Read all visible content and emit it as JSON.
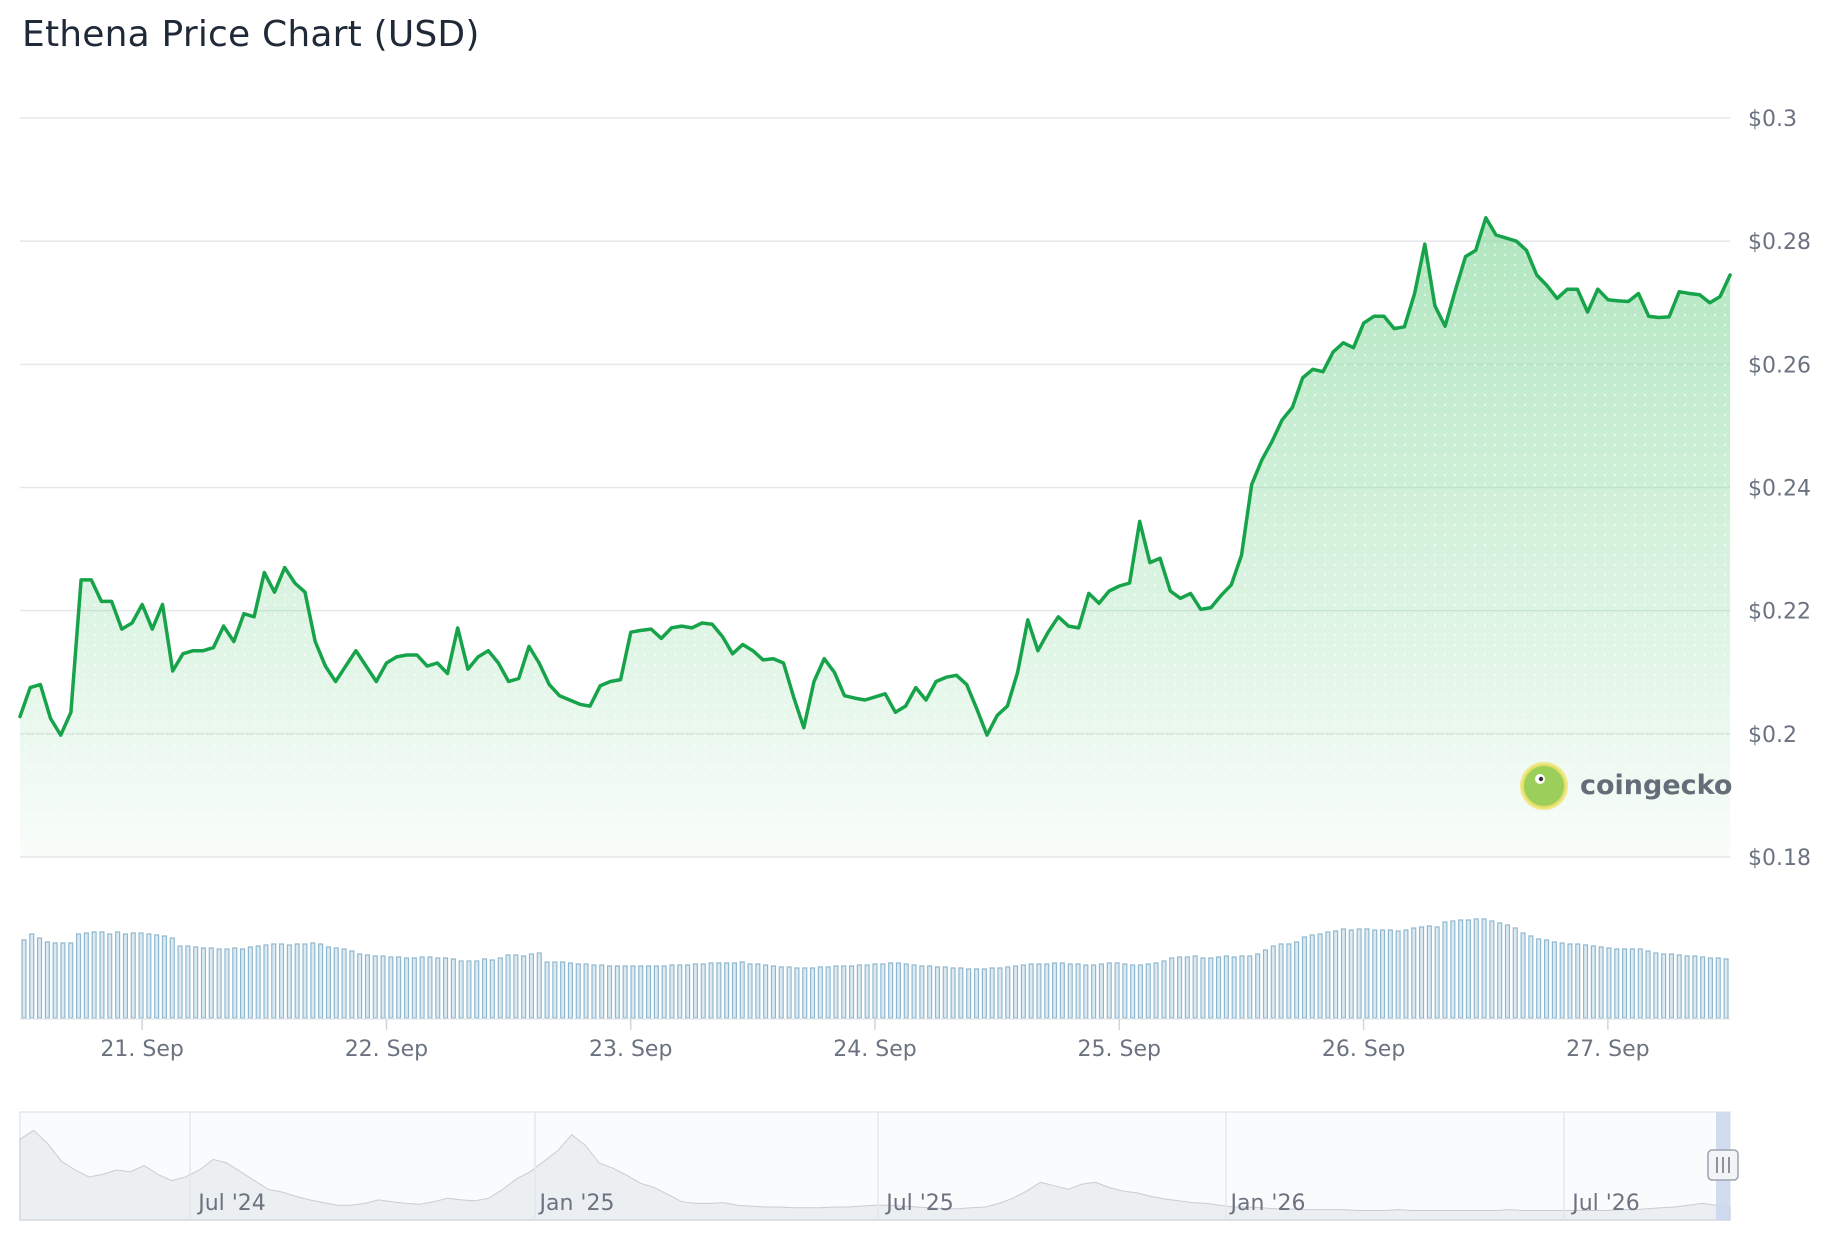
{
  "title": "Ethena Price Chart (USD)",
  "colors": {
    "line": "#16a34a",
    "area_top": "#86d89c",
    "grid": "#e5e7eb",
    "axis_text": "#6b7280",
    "volume_bar": "#8fb8cf",
    "navigator_area": "#e5e7eb",
    "navigator_handle": "#c9d6ee"
  },
  "watermark": {
    "text": "coingecko",
    "icon": "coingecko-gecko-logo"
  },
  "chart_data": [
    {
      "type": "line",
      "title": "Ethena Price Chart (USD)",
      "xlabel": "",
      "ylabel": "",
      "y_axis_side": "right",
      "ylim": [
        0.18,
        0.3
      ],
      "y_ticks": [
        0.18,
        0.2,
        0.22,
        0.24,
        0.26,
        0.28,
        0.3
      ],
      "y_tick_labels": [
        "$0.18",
        "$0.2",
        "$0.22",
        "$0.24",
        "$0.26",
        "$0.28",
        "$0.3"
      ],
      "xlim_days": [
        20.5,
        27.5
      ],
      "x_ticks": [
        21,
        22,
        23,
        24,
        25,
        26,
        27
      ],
      "x_tick_labels": [
        "21. Sep",
        "22. Sep",
        "23. Sep",
        "24. Sep",
        "25. Sep",
        "26. Sep",
        "27. Sep"
      ],
      "grid": true,
      "fill": "gradient-area",
      "series": [
        {
          "x_start_day": 20.5,
          "x_step_days": 0.04167,
          "values": [
            0.2028,
            0.2075,
            0.208,
            0.2025,
            0.1998,
            0.2035,
            0.225,
            0.225,
            0.2215,
            0.2215,
            0.217,
            0.218,
            0.221,
            0.217,
            0.221,
            0.2102,
            0.213,
            0.2135,
            0.2135,
            0.214,
            0.2175,
            0.215,
            0.2195,
            0.219,
            0.2262,
            0.223,
            0.227,
            0.2245,
            0.223,
            0.215,
            0.211,
            0.2085,
            0.211,
            0.2135,
            0.211,
            0.2085,
            0.2115,
            0.2125,
            0.2128,
            0.2128,
            0.211,
            0.2115,
            0.2098,
            0.2172,
            0.2105,
            0.2125,
            0.2135,
            0.2115,
            0.2085,
            0.209,
            0.2142,
            0.2115,
            0.208,
            0.2062,
            0.2055,
            0.2048,
            0.2045,
            0.2078,
            0.2085,
            0.2088,
            0.2165,
            0.2168,
            0.217,
            0.2155,
            0.2172,
            0.2175,
            0.2172,
            0.218,
            0.2178,
            0.2158,
            0.213,
            0.2145,
            0.2135,
            0.212,
            0.2122,
            0.2115,
            0.206,
            0.201,
            0.2085,
            0.2122,
            0.21,
            0.2062,
            0.2058,
            0.2055,
            0.206,
            0.2065,
            0.2035,
            0.2045,
            0.2075,
            0.2055,
            0.2085,
            0.2092,
            0.2095,
            0.208,
            0.204,
            0.1998,
            0.203,
            0.2045,
            0.21,
            0.2185,
            0.2135,
            0.2165,
            0.219,
            0.2175,
            0.2172,
            0.2228,
            0.2212,
            0.2232,
            0.224,
            0.2245,
            0.2345,
            0.2278,
            0.2285,
            0.2232,
            0.222,
            0.2228,
            0.2202,
            0.2205,
            0.2225,
            0.2242,
            0.229,
            0.2405,
            0.2445,
            0.2475,
            0.251,
            0.253,
            0.2578,
            0.2592,
            0.2588,
            0.262,
            0.2635,
            0.2627,
            0.2667,
            0.2678,
            0.2678,
            0.2658,
            0.2661,
            0.2715,
            0.2795,
            0.2695,
            0.2662,
            0.272,
            0.2775,
            0.2785,
            0.2838,
            0.281,
            0.2805,
            0.28,
            0.2785,
            0.2745,
            0.2728,
            0.2707,
            0.2722,
            0.2722,
            0.2685,
            0.2722,
            0.2705,
            0.2703,
            0.2702,
            0.2715,
            0.2678,
            0.2676,
            0.2677,
            0.2718,
            0.2715,
            0.2713,
            0.27,
            0.271,
            0.2745
          ]
        }
      ]
    },
    {
      "type": "bar",
      "title": "",
      "xlabel": "",
      "ylabel": "",
      "note": "volume bars, no visible scale",
      "series": [
        {
          "relative_values": [
            0.78,
            0.84,
            0.8,
            0.76,
            0.75,
            0.75,
            0.75,
            0.84,
            0.85,
            0.86,
            0.86,
            0.84,
            0.86,
            0.84,
            0.85,
            0.85,
            0.84,
            0.83,
            0.82,
            0.8,
            0.72,
            0.72,
            0.71,
            0.7,
            0.7,
            0.69,
            0.69,
            0.7,
            0.69,
            0.71,
            0.72,
            0.73,
            0.74,
            0.74,
            0.73,
            0.74,
            0.74,
            0.75,
            0.74,
            0.71,
            0.7,
            0.69,
            0.67,
            0.64,
            0.63,
            0.62,
            0.62,
            0.61,
            0.61,
            0.6,
            0.6,
            0.61,
            0.61,
            0.6,
            0.6,
            0.59,
            0.57,
            0.57,
            0.57,
            0.59,
            0.58,
            0.6,
            0.63,
            0.63,
            0.62,
            0.64,
            0.65,
            0.56,
            0.56,
            0.56,
            0.55,
            0.54,
            0.54,
            0.53,
            0.53,
            0.52,
            0.52,
            0.52,
            0.52,
            0.52,
            0.52,
            0.52,
            0.52,
            0.53,
            0.53,
            0.53,
            0.54,
            0.54,
            0.55,
            0.55,
            0.55,
            0.55,
            0.56,
            0.54,
            0.54,
            0.53,
            0.52,
            0.51,
            0.51,
            0.5,
            0.5,
            0.5,
            0.51,
            0.51,
            0.52,
            0.52,
            0.52,
            0.53,
            0.53,
            0.54,
            0.54,
            0.55,
            0.55,
            0.54,
            0.53,
            0.52,
            0.52,
            0.51,
            0.51,
            0.5,
            0.5,
            0.49,
            0.49,
            0.49,
            0.5,
            0.5,
            0.51,
            0.52,
            0.53,
            0.54,
            0.54,
            0.54,
            0.55,
            0.55,
            0.54,
            0.54,
            0.53,
            0.53,
            0.54,
            0.55,
            0.55,
            0.54,
            0.53,
            0.53,
            0.54,
            0.55,
            0.57,
            0.6,
            0.61,
            0.61,
            0.62,
            0.6,
            0.6,
            0.61,
            0.62,
            0.61,
            0.62,
            0.62,
            0.64,
            0.68,
            0.72,
            0.74,
            0.74,
            0.76,
            0.81,
            0.83,
            0.84,
            0.86,
            0.87,
            0.89,
            0.88,
            0.89,
            0.89,
            0.88,
            0.88,
            0.88,
            0.87,
            0.88,
            0.9,
            0.91,
            0.92,
            0.91,
            0.96,
            0.97,
            0.98,
            0.98,
            0.99,
            0.99,
            0.97,
            0.95,
            0.93,
            0.9,
            0.85,
            0.82,
            0.79,
            0.78,
            0.76,
            0.75,
            0.74,
            0.74,
            0.73,
            0.72,
            0.71,
            0.7,
            0.69,
            0.69,
            0.69,
            0.69,
            0.67,
            0.65,
            0.64,
            0.64,
            0.63,
            0.62,
            0.62,
            0.61,
            0.6,
            0.6,
            0.59
          ]
        }
      ]
    },
    {
      "type": "area",
      "title": "",
      "xlabel": "",
      "ylabel": "",
      "note": "navigator overview",
      "x_tick_labels": [
        "Jul '24",
        "Jan '25",
        "Jul '25",
        "Jan '26",
        "Jul '26"
      ],
      "selected_range": "last week"
    }
  ]
}
